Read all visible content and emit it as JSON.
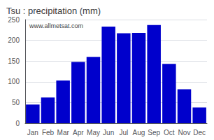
{
  "chart_data": {
    "type": "bar",
    "title": "Tsu : precipitation (mm)",
    "categories": [
      "Jan",
      "Feb",
      "Mar",
      "Apr",
      "May",
      "Jun",
      "Jul",
      "Aug",
      "Sep",
      "Oct",
      "Nov",
      "Dec"
    ],
    "values": [
      45,
      62,
      103,
      148,
      160,
      233,
      217,
      218,
      237,
      143,
      82,
      38
    ],
    "color": "#0000cc",
    "ylim": [
      0,
      250
    ],
    "yticks": [
      0,
      50,
      100,
      150,
      200,
      250
    ],
    "grid": true,
    "annotations": [
      "www.allmetsat.com"
    ]
  }
}
